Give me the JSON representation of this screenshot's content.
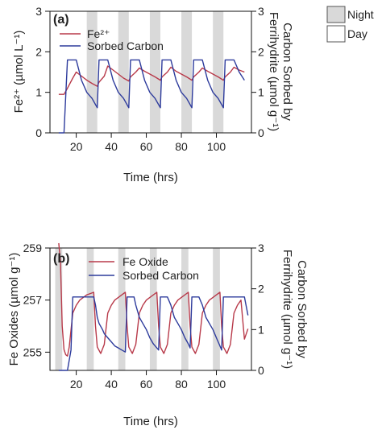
{
  "legend": {
    "night_label": "Night",
    "day_label": "Day",
    "night_color": "#d9d9d9"
  },
  "colors": {
    "red": "#b83a4a",
    "blue": "#2d3b9c",
    "shade": "#d9d9d9"
  },
  "chart_data": [
    {
      "type": "line",
      "panel_label": "(a)",
      "xlabel": "Time (hrs)",
      "ylabel_left": "Fe²⁺ (µmol L⁻¹)",
      "ylabel_right_line1": "Carbon Sorbed by",
      "ylabel_right_line2": "Ferrihydrite (µmol g⁻¹)",
      "xlim": [
        5,
        120
      ],
      "ylim_left": [
        0,
        3
      ],
      "ylim_right": [
        0,
        3
      ],
      "x_ticks": [
        20,
        40,
        60,
        80,
        100
      ],
      "y_ticks_left": [
        0,
        1,
        2,
        3
      ],
      "y_ticks_right": [
        0,
        1,
        2,
        3
      ],
      "night_intervals": [
        [
          26,
          32
        ],
        [
          44,
          50
        ],
        [
          62,
          68
        ],
        [
          80,
          86
        ],
        [
          98,
          104
        ]
      ],
      "series": [
        {
          "name": "Fe²⁺",
          "axis": "left",
          "color": "#b83a4a",
          "x": [
            10,
            13,
            15,
            18,
            20,
            23,
            26,
            29,
            32,
            33,
            36,
            38,
            41,
            44,
            47,
            50,
            51,
            54,
            56,
            59,
            62,
            65,
            68,
            69,
            72,
            74,
            77,
            80,
            83,
            86,
            87,
            90,
            92,
            95,
            98,
            101,
            104,
            105,
            108,
            110,
            113,
            116
          ],
          "y": [
            0.95,
            0.95,
            1.1,
            1.35,
            1.5,
            1.4,
            1.3,
            1.22,
            1.15,
            1.25,
            1.4,
            1.65,
            1.55,
            1.45,
            1.35,
            1.28,
            1.38,
            1.5,
            1.6,
            1.52,
            1.45,
            1.38,
            1.3,
            1.38,
            1.5,
            1.62,
            1.52,
            1.45,
            1.38,
            1.3,
            1.38,
            1.5,
            1.6,
            1.52,
            1.45,
            1.38,
            1.3,
            1.38,
            1.5,
            1.62,
            1.55,
            1.5
          ]
        },
        {
          "name": "Sorbed Carbon",
          "axis": "right",
          "color": "#2d3b9c",
          "x": [
            10,
            13,
            15,
            18,
            20,
            23,
            26,
            29,
            32,
            33,
            36,
            38,
            41,
            44,
            47,
            50,
            51,
            54,
            56,
            59,
            62,
            65,
            68,
            69,
            72,
            74,
            77,
            80,
            83,
            86,
            87,
            90,
            92,
            95,
            98,
            101,
            104,
            105,
            108,
            110,
            113,
            116
          ],
          "y": [
            0,
            0,
            1.8,
            1.8,
            1.8,
            1.3,
            1.0,
            0.85,
            0.62,
            1.8,
            1.8,
            1.8,
            1.3,
            1.0,
            0.85,
            0.62,
            1.8,
            1.8,
            1.8,
            1.3,
            1.0,
            0.85,
            0.62,
            1.8,
            1.8,
            1.8,
            1.3,
            1.0,
            0.85,
            0.62,
            1.8,
            1.8,
            1.8,
            1.3,
            1.0,
            0.85,
            0.62,
            1.8,
            1.8,
            1.8,
            1.5,
            1.3
          ]
        }
      ]
    },
    {
      "type": "line",
      "panel_label": "(b)",
      "xlabel": "Time (hrs)",
      "ylabel_left": "Fe Oxides (µmol g⁻¹)",
      "ylabel_right_line1": "Carbon Sorbed by",
      "ylabel_right_line2": "Ferrihydrite (µmol g⁻¹)",
      "xlim": [
        5,
        120
      ],
      "ylim_left": [
        254.3,
        259
      ],
      "ylim_right": [
        0,
        3
      ],
      "x_ticks": [
        20,
        40,
        60,
        80,
        100
      ],
      "y_ticks_left": [
        255,
        257,
        259
      ],
      "y_ticks_right": [
        0,
        1,
        2,
        3
      ],
      "night_intervals": [
        [
          8,
          12
        ],
        [
          26,
          30
        ],
        [
          44,
          48
        ],
        [
          62,
          66
        ],
        [
          80,
          84
        ],
        [
          98,
          102
        ]
      ],
      "series": [
        {
          "name": "Fe Oxide",
          "axis": "left",
          "color": "#b83a4a",
          "x": [
            10,
            11,
            12,
            13,
            14,
            15,
            16,
            18,
            20,
            22,
            24,
            26,
            28,
            30,
            31,
            32,
            34,
            36,
            38,
            40,
            42,
            44,
            46,
            48,
            49,
            50,
            52,
            54,
            56,
            58,
            60,
            62,
            64,
            66,
            67,
            68,
            70,
            72,
            74,
            76,
            78,
            80,
            82,
            84,
            85,
            86,
            88,
            90,
            92,
            94,
            96,
            98,
            100,
            102,
            103,
            104,
            106,
            108,
            110,
            112,
            114,
            116,
            118
          ],
          "y": [
            259.5,
            258.5,
            256,
            255.1,
            254.9,
            254.85,
            255.2,
            256.5,
            256.8,
            257.0,
            257.1,
            257.2,
            257.25,
            257.3,
            256,
            255.2,
            254.95,
            255.3,
            256.5,
            256.8,
            257.0,
            257.1,
            257.2,
            257.3,
            256,
            255.2,
            254.95,
            255.3,
            256.5,
            256.8,
            257.0,
            257.1,
            257.2,
            257.3,
            256,
            255.2,
            254.95,
            255.3,
            256.5,
            256.8,
            257.0,
            257.1,
            257.2,
            257.3,
            256,
            255.2,
            254.95,
            255.3,
            256.5,
            256.8,
            257.0,
            257.1,
            257.2,
            257.3,
            256,
            255.2,
            254.95,
            255.3,
            256.5,
            256.8,
            257.0,
            255.5,
            255.9
          ]
        },
        {
          "name": "Sorbed Carbon",
          "axis": "right",
          "color": "#2d3b9c",
          "x": [
            10,
            13,
            15,
            17,
            18,
            20,
            22,
            24,
            26,
            28,
            30,
            31,
            32,
            33,
            35,
            36,
            38,
            40,
            42,
            44,
            46,
            48,
            49,
            50,
            51,
            53,
            54,
            56,
            58,
            60,
            62,
            64,
            66,
            67,
            68,
            69,
            71,
            72,
            74,
            76,
            78,
            80,
            82,
            84,
            85,
            86,
            87,
            89,
            90,
            92,
            94,
            96,
            98,
            100,
            102,
            103,
            104,
            105,
            107,
            108,
            110,
            112,
            114,
            116,
            118
          ],
          "y": [
            0,
            0,
            0,
            0.5,
            1.8,
            1.8,
            1.8,
            1.8,
            1.8,
            1.8,
            1.8,
            1.6,
            1.3,
            1.15,
            1.0,
            0.9,
            0.8,
            0.7,
            0.6,
            0.55,
            0.5,
            0.45,
            1.8,
            1.8,
            1.8,
            1.8,
            1.6,
            1.3,
            1.15,
            1.0,
            0.8,
            0.65,
            0.55,
            0.5,
            1.8,
            1.8,
            1.8,
            1.8,
            1.6,
            1.3,
            1.15,
            1.0,
            0.8,
            0.65,
            0.55,
            1.8,
            1.8,
            1.8,
            1.8,
            1.6,
            1.3,
            1.15,
            1.0,
            0.8,
            0.6,
            0.5,
            1.8,
            1.8,
            1.8,
            1.8,
            1.8,
            1.8,
            1.8,
            1.8,
            1.35
          ]
        }
      ]
    }
  ]
}
